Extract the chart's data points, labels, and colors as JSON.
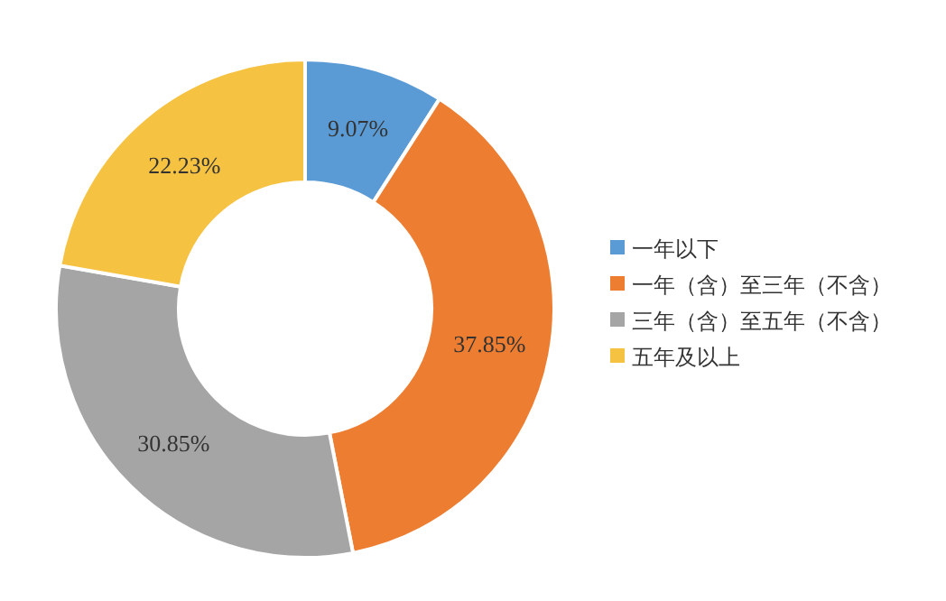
{
  "chart_data": {
    "type": "donut",
    "categories": [
      "一年以下",
      "一年（含）至三年（不含）",
      "三年（含）至五年（不含）",
      "五年及以上"
    ],
    "values": [
      9.07,
      37.85,
      30.85,
      22.23
    ],
    "value_labels": [
      "9.07%",
      "37.85%",
      "30.85%",
      "22.23%"
    ],
    "colors": [
      "#5b9bd5",
      "#ed7d31",
      "#a5a5a5",
      "#f5c242"
    ],
    "legend": "right"
  }
}
